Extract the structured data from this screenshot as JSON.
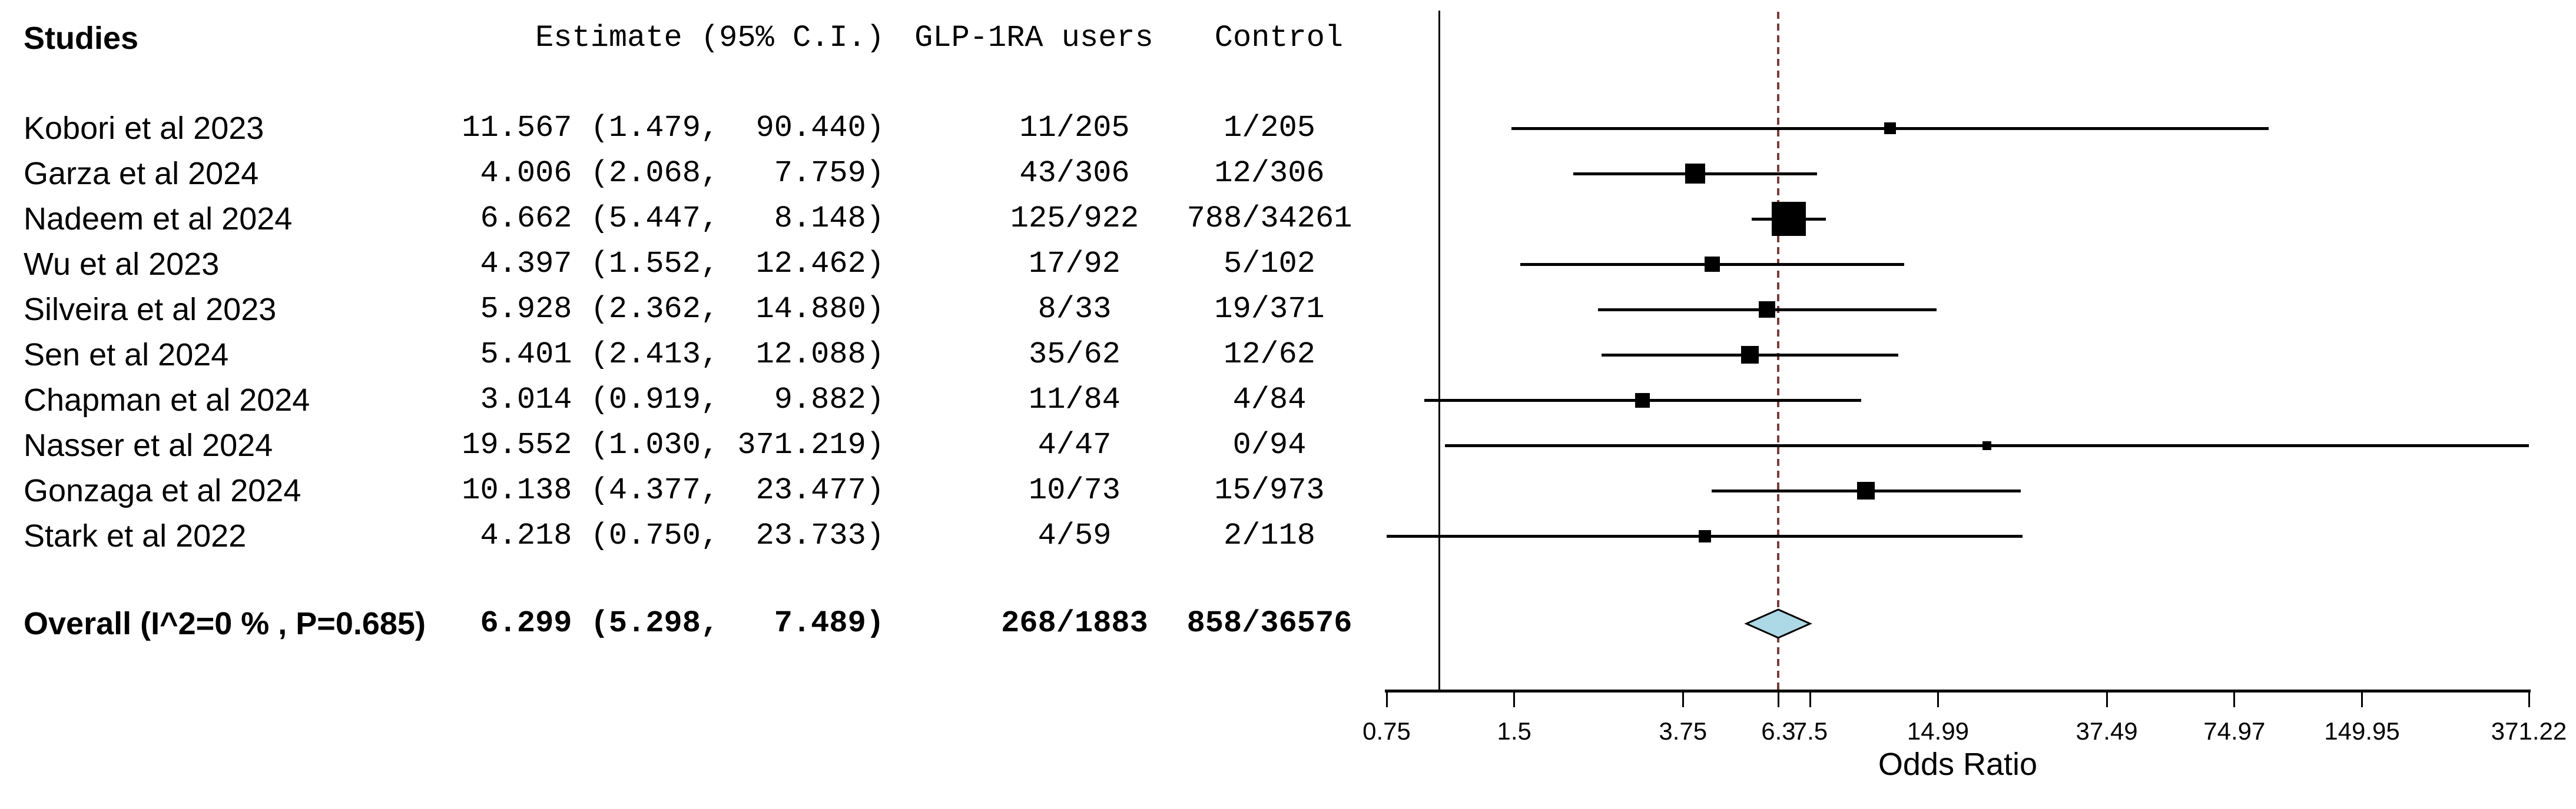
{
  "colors": {
    "diamond_fill": "#ADD8E6",
    "pooled_line_color": "#7a3b3b",
    "marker_color": "#000000",
    "axis_color": "#000000",
    "text_color": "#000000"
  },
  "chart_data": {
    "type": "forest",
    "x_scale": "log",
    "xlabel": "Odds Ratio",
    "x_range": [
      0.75,
      371.22
    ],
    "columns": {
      "studies": "Studies",
      "estimate": "Estimate (95% C.I.)",
      "glp": "GLP-1RA users",
      "control": "Control"
    },
    "studies": [
      {
        "name": "Kobori et al 2023",
        "est": 11.567,
        "lo": 1.479,
        "hi": 90.44,
        "estimate_text": "11.567 (1.479,  90.440)",
        "glp": "11/205",
        "control": "1/205",
        "marker_size": 20
      },
      {
        "name": "Garza et al 2024",
        "est": 4.006,
        "lo": 2.068,
        "hi": 7.759,
        "estimate_text": " 4.006 (2.068,   7.759)",
        "glp": "43/306",
        "control": "12/306",
        "marker_size": 34
      },
      {
        "name": "Nadeem et al 2024",
        "est": 6.662,
        "lo": 5.447,
        "hi": 8.148,
        "estimate_text": " 6.662 (5.447,   8.148)",
        "glp": "125/922",
        "control": "788/34261",
        "marker_size": 58
      },
      {
        "name": "Wu et al 2023",
        "est": 4.397,
        "lo": 1.552,
        "hi": 12.462,
        "estimate_text": " 4.397 (1.552,  12.462)",
        "glp": "17/92",
        "control": "5/102",
        "marker_size": 26
      },
      {
        "name": "Silveira et al 2023",
        "est": 5.928,
        "lo": 2.362,
        "hi": 14.88,
        "estimate_text": " 5.928 (2.362,  14.880)",
        "glp": "8/33",
        "control": "19/371",
        "marker_size": 28
      },
      {
        "name": "Sen et al 2024",
        "est": 5.401,
        "lo": 2.413,
        "hi": 12.088,
        "estimate_text": " 5.401 (2.413,  12.088)",
        "glp": "35/62",
        "control": "12/62",
        "marker_size": 30
      },
      {
        "name": "Chapman et al 2024",
        "est": 3.014,
        "lo": 0.919,
        "hi": 9.882,
        "estimate_text": " 3.014 (0.919,   9.882)",
        "glp": "11/84",
        "control": "4/84",
        "marker_size": 25
      },
      {
        "name": "Nasser et al 2024",
        "est": 19.552,
        "lo": 1.03,
        "hi": 371.219,
        "estimate_text": "19.552 (1.030, 371.219)",
        "glp": "4/47",
        "control": "0/94",
        "marker_size": 15
      },
      {
        "name": "Gonzaga et al 2024",
        "est": 10.138,
        "lo": 4.377,
        "hi": 23.477,
        "estimate_text": "10.138 (4.377,  23.477)",
        "glp": "10/73",
        "control": "15/973",
        "marker_size": 30
      },
      {
        "name": "Stark et al 2022",
        "est": 4.218,
        "lo": 0.75,
        "hi": 23.733,
        "estimate_text": " 4.218 (0.750,  23.733)",
        "glp": "4/59",
        "control": "2/118",
        "marker_size": 21
      }
    ],
    "overall": {
      "name": "Overall (I^2=0 % , P=0.685)",
      "est": 6.299,
      "lo": 5.298,
      "hi": 7.489,
      "estimate_text": " 6.299 (5.298,   7.489)",
      "glp": "268/1883",
      "control": "858/36576"
    },
    "axis": {
      "ticks": [
        {
          "value": 0.75,
          "label": "0.75"
        },
        {
          "value": 1.5,
          "label": "1.5"
        },
        {
          "value": 3.75,
          "label": "3.75"
        },
        {
          "value": 6.3,
          "label": "6.3"
        },
        {
          "value": 7.5,
          "label": "7.5"
        },
        {
          "value": 14.99,
          "label": "14.99"
        },
        {
          "value": 37.49,
          "label": "37.49"
        },
        {
          "value": 74.97,
          "label": "74.97"
        },
        {
          "value": 149.95,
          "label": "149.95"
        },
        {
          "value": 371.22,
          "label": "371.22"
        }
      ],
      "ref_line": 1,
      "pooled_line": 6.299
    }
  }
}
